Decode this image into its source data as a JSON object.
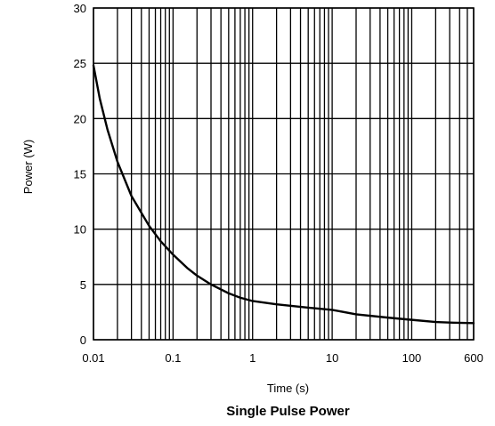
{
  "chart_data": {
    "type": "line",
    "title": "Single Pulse Power",
    "xlabel": "Time (s)",
    "ylabel": "Power  (W)",
    "x_scale": "log",
    "xlim": [
      0.01,
      600
    ],
    "ylim": [
      0,
      30
    ],
    "x_ticks": [
      {
        "value": 0.01,
        "label": "0.01"
      },
      {
        "value": 0.1,
        "label": "0.1"
      },
      {
        "value": 1,
        "label": "1"
      },
      {
        "value": 10,
        "label": "10"
      },
      {
        "value": 100,
        "label": "100"
      },
      {
        "value": 600,
        "label": "600"
      }
    ],
    "y_ticks": [
      {
        "value": 0,
        "label": "0"
      },
      {
        "value": 5,
        "label": "5"
      },
      {
        "value": 10,
        "label": "10"
      },
      {
        "value": 15,
        "label": "15"
      },
      {
        "value": 20,
        "label": "20"
      },
      {
        "value": 25,
        "label": "25"
      },
      {
        "value": 30,
        "label": "30"
      }
    ],
    "grid": true,
    "series": [
      {
        "color": "#000000",
        "points": [
          [
            0.01,
            24.8
          ],
          [
            0.012,
            21.8
          ],
          [
            0.015,
            19.0
          ],
          [
            0.02,
            16.1
          ],
          [
            0.03,
            13.0
          ],
          [
            0.05,
            10.3
          ],
          [
            0.07,
            8.9
          ],
          [
            0.1,
            7.7
          ],
          [
            0.15,
            6.5
          ],
          [
            0.2,
            5.8
          ],
          [
            0.3,
            5.0
          ],
          [
            0.5,
            4.2
          ],
          [
            0.7,
            3.8
          ],
          [
            1,
            3.5
          ],
          [
            2,
            3.2
          ],
          [
            5,
            2.9
          ],
          [
            10,
            2.7
          ],
          [
            20,
            2.3
          ],
          [
            50,
            2.0
          ],
          [
            100,
            1.8
          ],
          [
            200,
            1.6
          ],
          [
            300,
            1.55
          ],
          [
            600,
            1.5
          ]
        ]
      }
    ]
  }
}
